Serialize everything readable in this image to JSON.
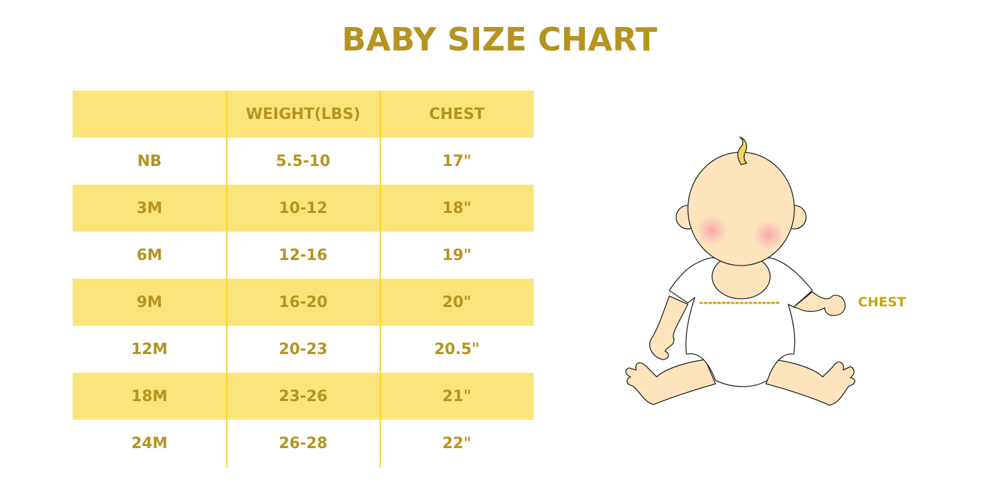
{
  "title": "BABY SIZE CHART",
  "table": {
    "headers": [
      "",
      "WEIGHT(LBS)",
      "CHEST"
    ],
    "rows": [
      [
        "NB",
        "5.5-10",
        "17\""
      ],
      [
        "3M",
        "10-12",
        "18\""
      ],
      [
        "6M",
        "12-16",
        "19\""
      ],
      [
        "9M",
        "16-20",
        "20\""
      ],
      [
        "12M",
        "20-23",
        "20.5\""
      ],
      [
        "18M",
        "23-26",
        "21\""
      ],
      [
        "24M",
        "26-28",
        "22\""
      ]
    ]
  },
  "illustration": {
    "chest_label": "CHEST"
  },
  "colors": {
    "text": "#B5941F",
    "row_fill": "#FBE57A",
    "divider": "#F7D43A",
    "skin": "#FDE4BC"
  }
}
